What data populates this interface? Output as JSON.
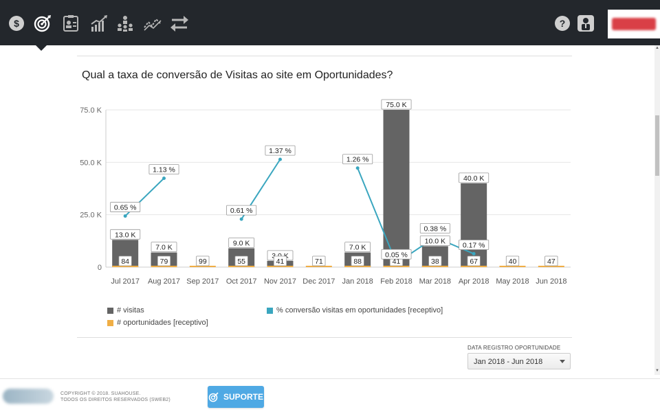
{
  "nav": {
    "items": [
      {
        "name": "finance-icon"
      },
      {
        "name": "target-icon"
      },
      {
        "name": "contacts-icon"
      },
      {
        "name": "growth-chart-icon"
      },
      {
        "name": "hierarchy-icon"
      },
      {
        "name": "trend-icon"
      },
      {
        "name": "transfer-icon"
      }
    ],
    "help_icon": "help-icon",
    "user_icon": "user-icon"
  },
  "chart": {
    "title": "Qual a taxa de conversão de Visitas ao site em Oportunidades?"
  },
  "chart_data": {
    "type": "bar",
    "title": "Qual a taxa de conversão de Visitas ao site em Oportunidades?",
    "categories": [
      "Jul 2017",
      "Aug 2017",
      "Sep 2017",
      "Oct 2017",
      "Nov 2017",
      "Dec 2017",
      "Jan 2018",
      "Feb 2018",
      "Mar 2018",
      "Apr 2018",
      "May 2018",
      "Jun 2018"
    ],
    "y_ticks": [
      "0",
      "25.0 K",
      "50.0 K",
      "75.0 K"
    ],
    "ylim": [
      0,
      75000
    ],
    "series": [
      {
        "name": "# visitas",
        "type": "bar",
        "color": "#646464",
        "values": [
          13000,
          7000,
          null,
          9000,
          3000,
          null,
          7000,
          75000,
          10000,
          40000,
          null,
          null
        ],
        "labels": [
          "13.0 K",
          "7.0 K",
          "",
          "9.0 K",
          "3.0 K",
          "",
          "7.0 K",
          "75.0 K",
          "10.0 K",
          "40.0 K",
          "",
          ""
        ]
      },
      {
        "name": "# oportunidades [receptivo]",
        "type": "bar",
        "color": "#f0ae45",
        "values": [
          84,
          79,
          99,
          55,
          41,
          71,
          88,
          41,
          38,
          67,
          40,
          47
        ],
        "labels": [
          "84",
          "79",
          "99",
          "55",
          "41",
          "71",
          "88",
          "41",
          "38",
          "67",
          "40",
          "47"
        ]
      },
      {
        "name": "% conversão visitas em oportunidades [receptivo]",
        "type": "line",
        "color": "#3aa6bf",
        "values": [
          0.65,
          1.13,
          null,
          0.61,
          1.37,
          null,
          1.26,
          0.05,
          0.38,
          0.17,
          null,
          null
        ],
        "labels": [
          "0.65 %",
          "1.13 %",
          "",
          "0.61 %",
          "1.37 %",
          "",
          "1.26 %",
          "0.05 %",
          "0.38 %",
          "0.17 %",
          "",
          ""
        ]
      }
    ],
    "grid": true,
    "legend": "bottom"
  },
  "filter": {
    "label": "DATA REGISTRO OPORTUNIDADE",
    "value": "Jan 2018 - Jun 2018"
  },
  "footer": {
    "copyright_line1": "COPYRIGHT © 2018. SUAHOUSE.",
    "copyright_line2": "TODOS OS DIREITOS RESERVADOS (SWEB2)",
    "support_label": "SUPORTE"
  }
}
